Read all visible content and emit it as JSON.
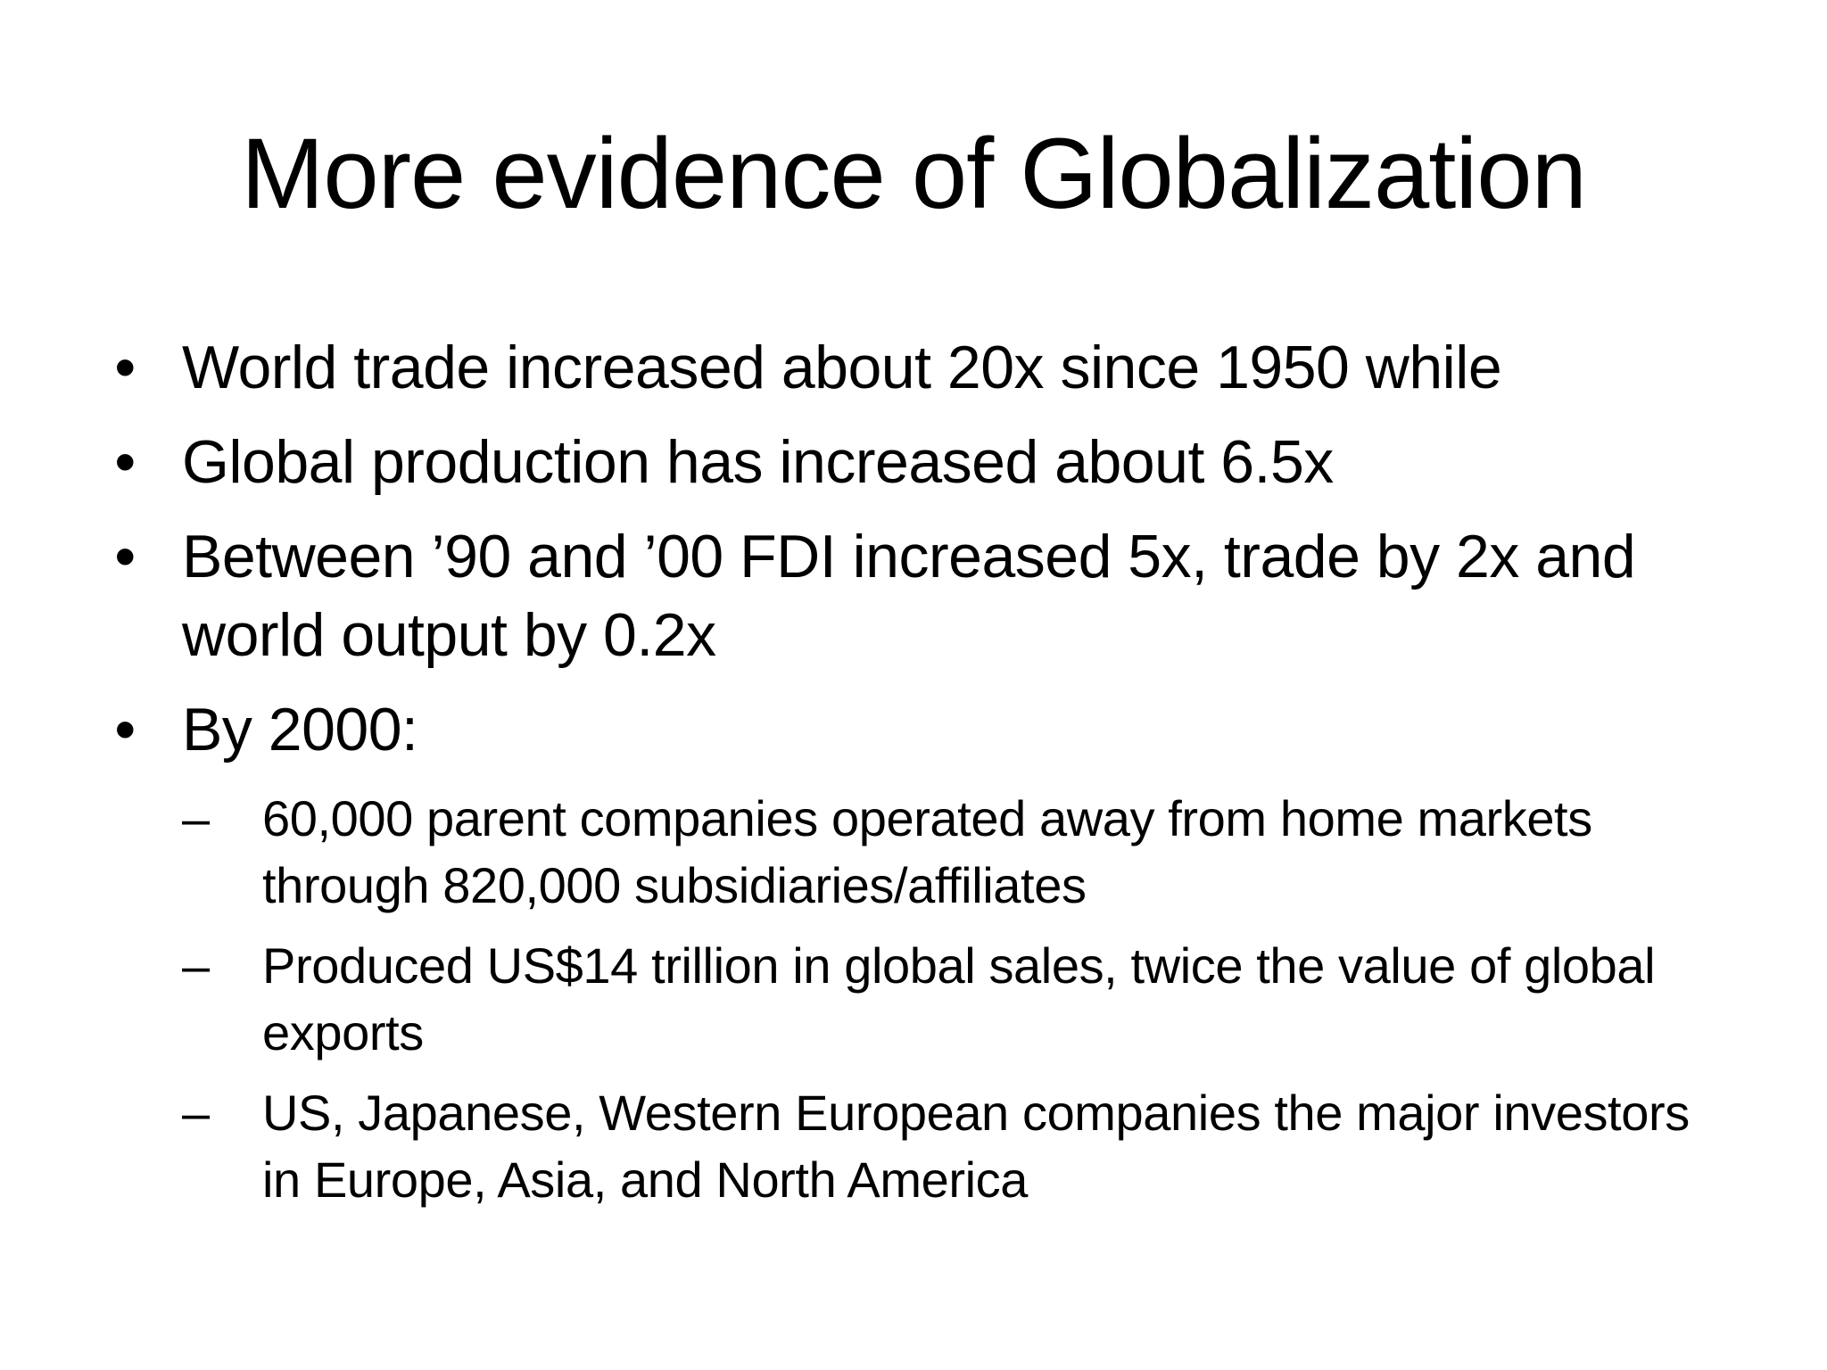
{
  "slide": {
    "title": "More evidence of Globalization",
    "bullets": [
      {
        "marker": "•",
        "text": "World trade increased about 20x since 1950 while"
      },
      {
        "marker": "•",
        "text": "Global production has increased about 6.5x"
      },
      {
        "marker": "•",
        "text": "Between ’90 and ’00 FDI increased 5x, trade by 2x and world output by 0.2x"
      },
      {
        "marker": "•",
        "text": "By 2000:"
      }
    ],
    "sub_bullets": [
      {
        "marker": "–",
        "text": "60,000 parent companies operated away from home markets through 820,000 subsidiaries/affiliates"
      },
      {
        "marker": "–",
        "text": "Produced US$14 trillion in global sales, twice the value of global exports"
      },
      {
        "marker": "–",
        "text": "US, Japanese, Western European companies the major investors in Europe, Asia, and North America"
      }
    ]
  }
}
